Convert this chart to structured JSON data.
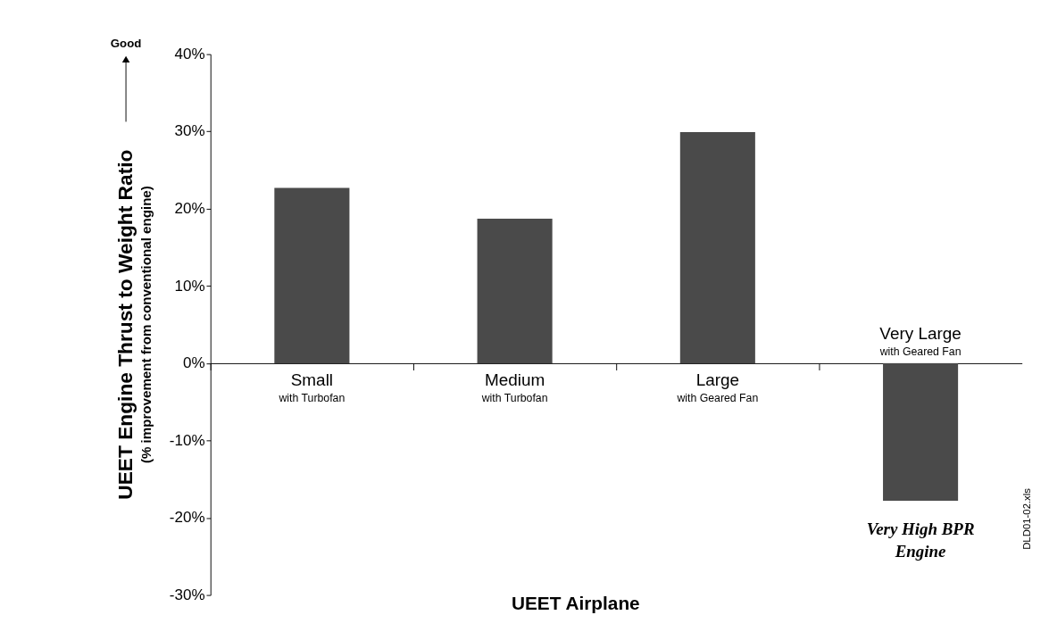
{
  "chart_data": {
    "type": "bar",
    "categories": [
      "Small",
      "Medium",
      "Large",
      "Very Large"
    ],
    "values": [
      22.7,
      18.7,
      29.9,
      -17.8
    ],
    "color": "#4a4a4a",
    "ylim": [
      -30,
      40
    ],
    "yticks": [
      {
        "value": -30,
        "label": "-30%"
      },
      {
        "value": -20,
        "label": "-20%"
      },
      {
        "value": -10,
        "label": "-10%"
      },
      {
        "value": 0,
        "label": "0%"
      },
      {
        "value": 10,
        "label": "10%"
      },
      {
        "value": 20,
        "label": "20%"
      },
      {
        "value": 30,
        "label": "30%"
      },
      {
        "value": 40,
        "label": "40%"
      }
    ],
    "ylabel": "UEET Engine Thrust to Weight Ratio\n(% improvement from conventional engine)",
    "xlabel": "UEET Airplane",
    "annotations": [
      "Good",
      "with Turbofan",
      "with Turbofan",
      "with Geared Fan",
      "with Geared Fan",
      "Very High BPR\nEngine",
      "DLD01-02.xls"
    ]
  }
}
